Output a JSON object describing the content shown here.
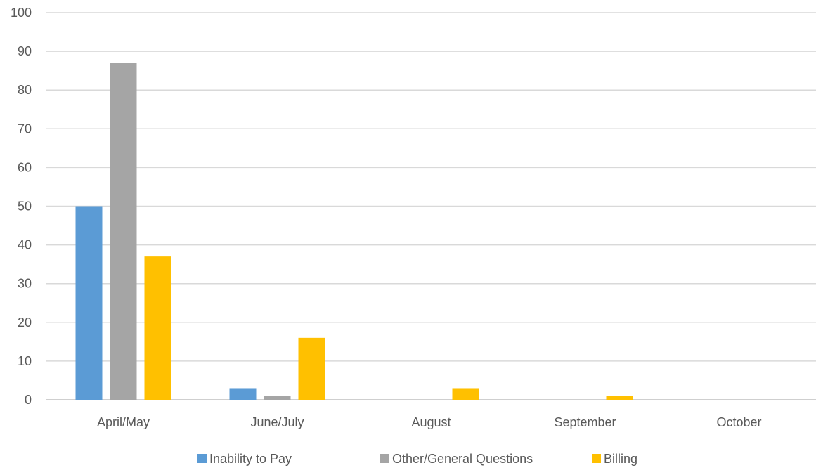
{
  "chart_data": {
    "type": "bar",
    "categories": [
      "April/May",
      "June/July",
      "August",
      "September",
      "October"
    ],
    "series": [
      {
        "name": "Inability to Pay",
        "color": "#5B9BD5",
        "values": [
          50,
          3,
          0,
          0,
          0
        ]
      },
      {
        "name": "Other/General Questions",
        "color": "#A5A5A5",
        "values": [
          87,
          1,
          0,
          0,
          0
        ]
      },
      {
        "name": "Billing",
        "color": "#FFC000",
        "values": [
          37,
          16,
          3,
          1,
          0
        ]
      }
    ],
    "ylim": [
      0,
      100
    ],
    "yticks": [
      0,
      10,
      20,
      30,
      40,
      50,
      60,
      70,
      80,
      90,
      100
    ],
    "grid": true,
    "legend_position": "bottom"
  }
}
